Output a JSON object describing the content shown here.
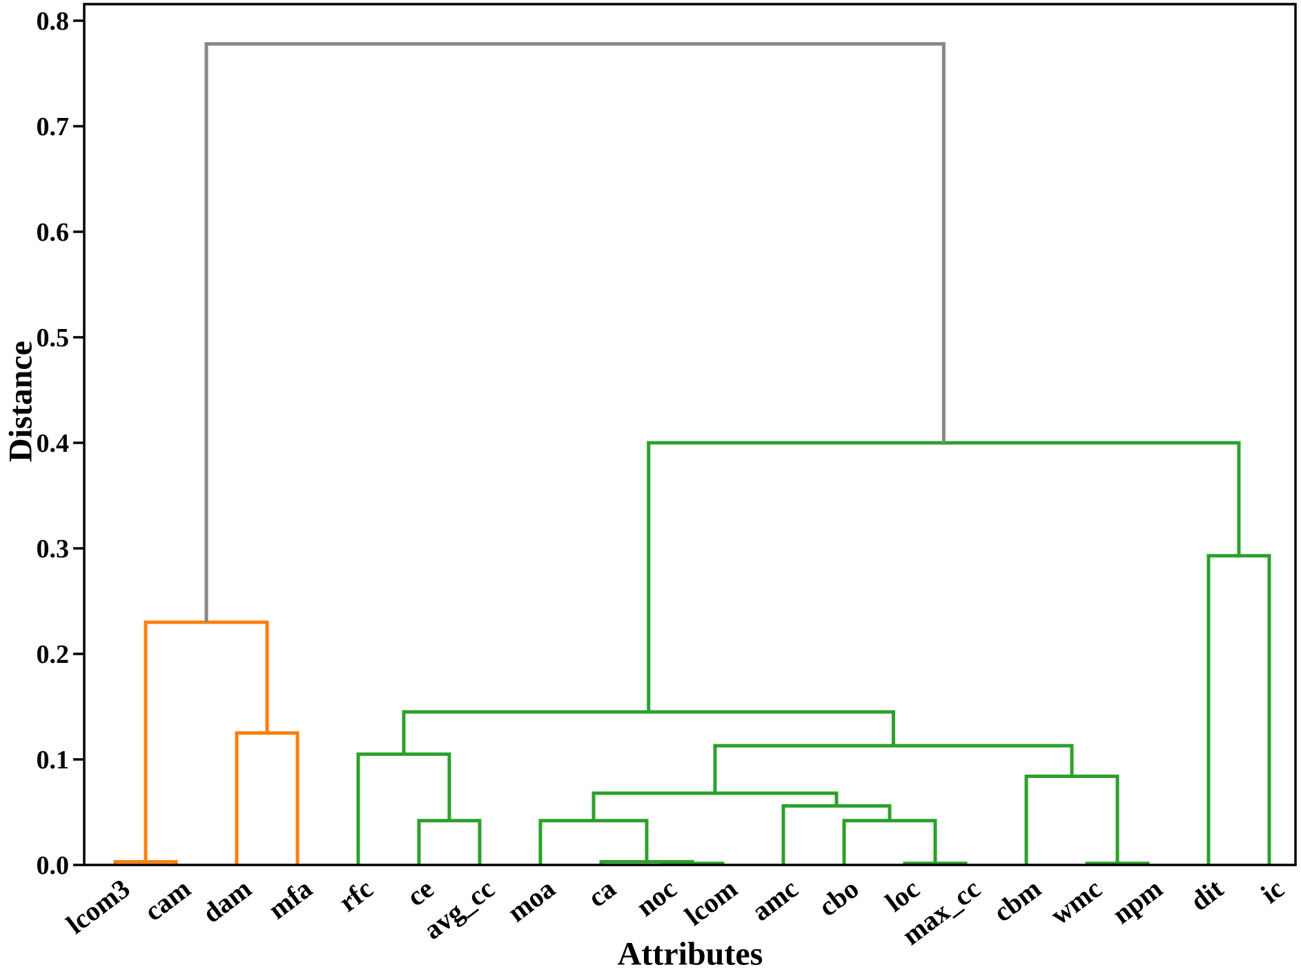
{
  "chart_data": {
    "type": "dendrogram",
    "title": "",
    "xlabel": "Attributes",
    "ylabel": "Distance",
    "ylim": [
      0.0,
      0.8157
    ],
    "yticks": [
      "0.0",
      "0.1",
      "0.2",
      "0.3",
      "0.4",
      "0.5",
      "0.6",
      "0.7",
      "0.8"
    ],
    "ytick_values": [
      0.0,
      0.1,
      0.2,
      0.3,
      0.4,
      0.5,
      0.6,
      0.7,
      0.8
    ],
    "grid": false,
    "legend": "none",
    "leaves": [
      "lcom3",
      "cam",
      "dam",
      "mfa",
      "rfc",
      "ce",
      "avg_cc",
      "moa",
      "ca",
      "noc",
      "lcom",
      "amc",
      "cbo",
      "loc",
      "max_cc",
      "cbm",
      "wmc",
      "npm",
      "dit",
      "ic"
    ],
    "merges": [
      {
        "children": [
          "lcom3",
          "cam"
        ],
        "height": 0.003,
        "color": "orange"
      },
      {
        "children": [
          "dam",
          "mfa"
        ],
        "height": 0.125,
        "color": "orange"
      },
      {
        "children": [
          0,
          1
        ],
        "height": 0.23,
        "color": "orange"
      },
      {
        "children": [
          "noc",
          "lcom"
        ],
        "height": 0.0015,
        "color": "green"
      },
      {
        "children": [
          "ca",
          3
        ],
        "height": 0.003,
        "color": "green"
      },
      {
        "children": [
          "moa",
          4
        ],
        "height": 0.042,
        "color": "green"
      },
      {
        "children": [
          "loc",
          "max_cc"
        ],
        "height": 0.0015,
        "color": "green"
      },
      {
        "children": [
          "cbo",
          6
        ],
        "height": 0.042,
        "color": "green"
      },
      {
        "children": [
          "amc",
          7
        ],
        "height": 0.056,
        "color": "green"
      },
      {
        "children": [
          5,
          8
        ],
        "height": 0.068,
        "color": "green"
      },
      {
        "children": [
          "wmc",
          "npm"
        ],
        "height": 0.0015,
        "color": "green"
      },
      {
        "children": [
          "cbm",
          10
        ],
        "height": 0.084,
        "color": "green"
      },
      {
        "children": [
          9,
          11
        ],
        "height": 0.113,
        "color": "green"
      },
      {
        "children": [
          "ce",
          "avg_cc"
        ],
        "height": 0.042,
        "color": "green"
      },
      {
        "children": [
          "rfc",
          13
        ],
        "height": 0.105,
        "color": "green"
      },
      {
        "children": [
          14,
          12
        ],
        "height": 0.145,
        "color": "green"
      },
      {
        "children": [
          "dit",
          "ic"
        ],
        "height": 0.293,
        "color": "green"
      },
      {
        "children": [
          15,
          16
        ],
        "height": 0.4,
        "color": "green"
      },
      {
        "children": [
          2,
          17
        ],
        "height": 0.778,
        "color": "gray"
      }
    ],
    "colors": {
      "orange": "#ff7f0e",
      "green": "#2ca02c",
      "gray": "#878787",
      "spine": "#000000",
      "text": "#000000"
    }
  }
}
